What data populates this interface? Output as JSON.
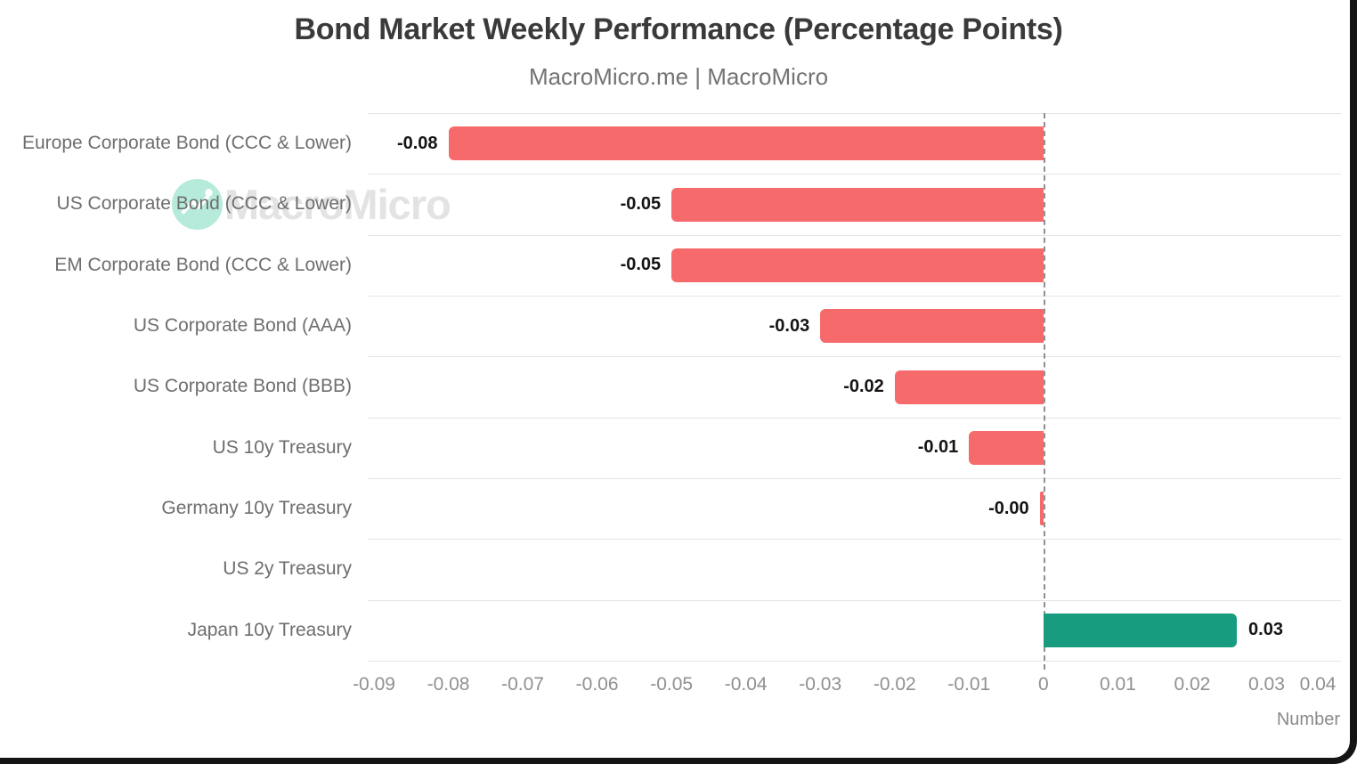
{
  "header": {
    "title": "Bond Market Weekly Performance (Percentage Points)",
    "subtitle": "MacroMicro.me | MacroMicro"
  },
  "watermark": {
    "brand": "MacroMicro",
    "icon": "macromicro-logo-icon",
    "circle_color": "#b6ebdb",
    "text_color": "#e3e3e3"
  },
  "chart_data": {
    "type": "bar",
    "orientation": "horizontal",
    "title": "Bond Market Weekly Performance (Percentage Points)",
    "subtitle": "MacroMicro.me | MacroMicro",
    "xlabel": "Number",
    "xlim": [
      -0.09,
      0.04
    ],
    "x_ticks": [
      "-0.09",
      "-0.08",
      "-0.07",
      "-0.06",
      "-0.05",
      "-0.04",
      "-0.03",
      "-0.02",
      "-0.01",
      "0",
      "0.01",
      "0.02",
      "0.03",
      "0.04"
    ],
    "grid": "horizontal-light",
    "zero_line": "dashed-gray",
    "legend": "none",
    "colors": {
      "negative": "#f76a6c",
      "positive": "#189c7f"
    },
    "bars": [
      {
        "category": "Europe Corporate Bond (CCC & Lower)",
        "value": -0.08,
        "label": "-0.08"
      },
      {
        "category": "US Corporate Bond (CCC & Lower)",
        "value": -0.05,
        "label": "-0.05"
      },
      {
        "category": "EM Corporate Bond (CCC & Lower)",
        "value": -0.05,
        "label": "-0.05"
      },
      {
        "category": "US Corporate Bond (AAA)",
        "value": -0.03,
        "label": "-0.03"
      },
      {
        "category": "US Corporate Bond (BBB)",
        "value": -0.02,
        "label": "-0.02"
      },
      {
        "category": "US 10y Treasury",
        "value": -0.01,
        "label": "-0.01"
      },
      {
        "category": "Germany 10y Treasury",
        "value": -0.0005,
        "label": "-0.00"
      },
      {
        "category": "US 2y Treasury",
        "value": 0,
        "label": ""
      },
      {
        "category": "Japan 10y Treasury",
        "value": 0.026,
        "label": "0.03"
      }
    ]
  }
}
